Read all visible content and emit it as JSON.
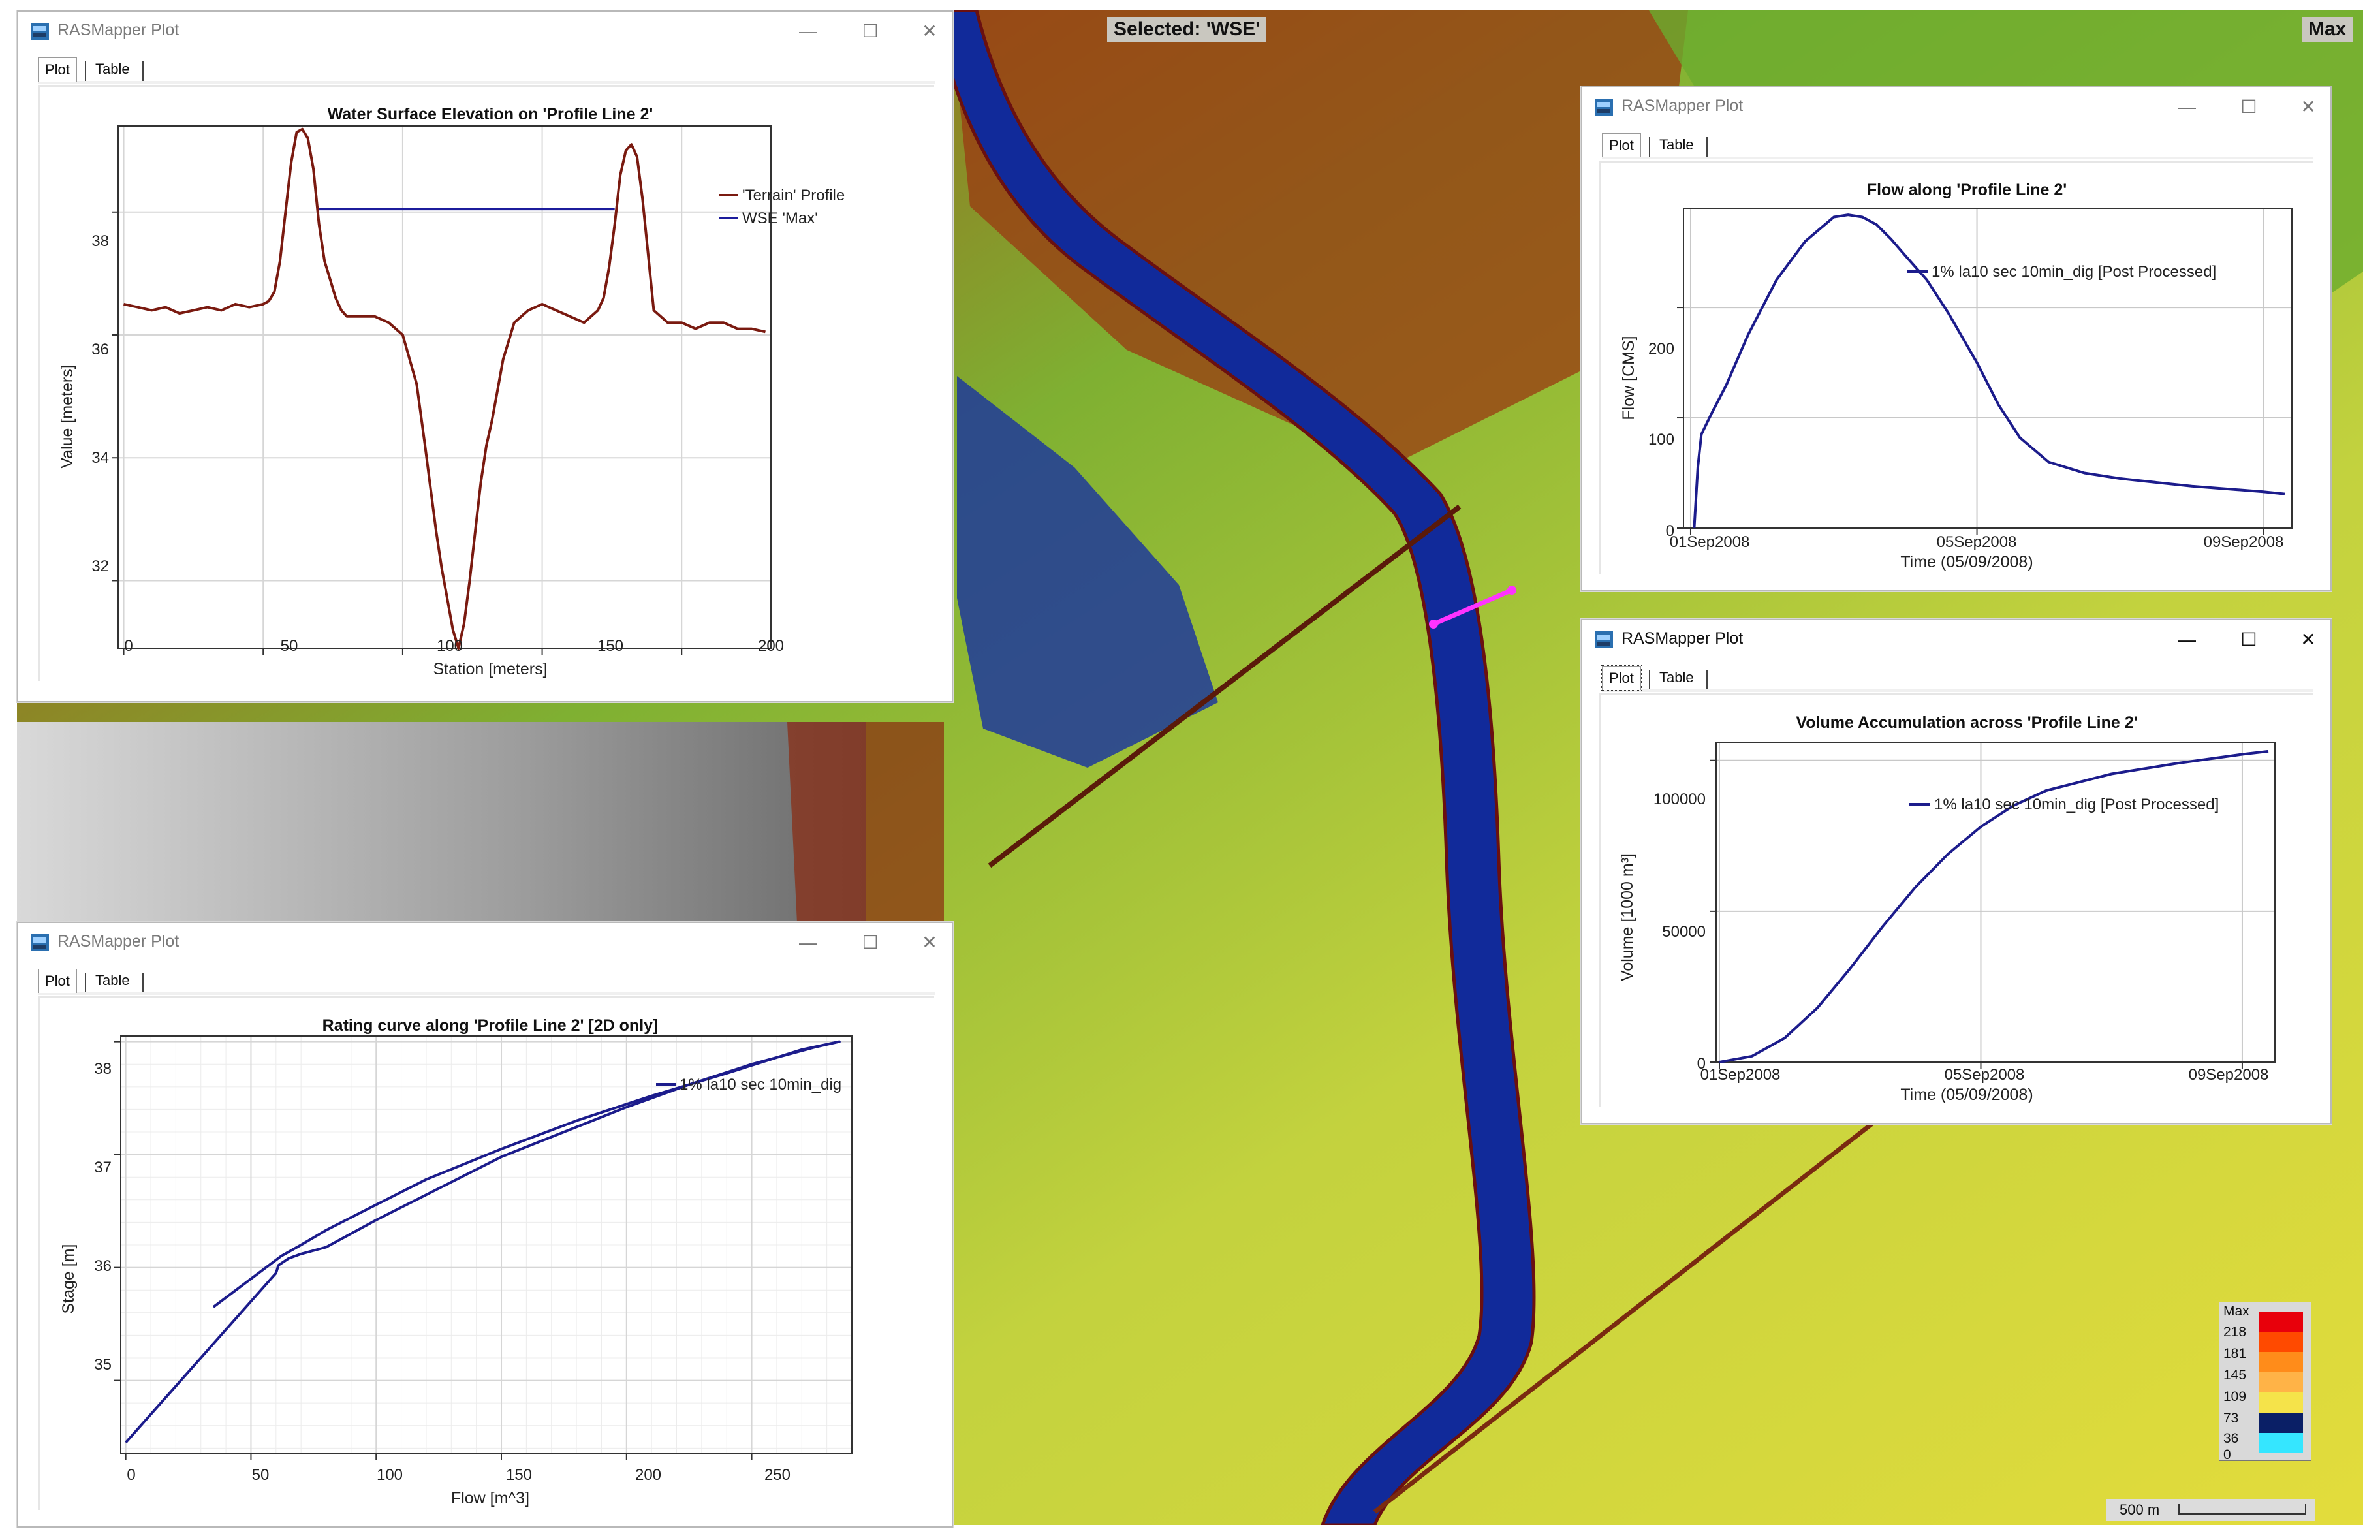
{
  "map": {
    "selected_label": "Selected: 'WSE'",
    "max_label": "Max",
    "legend": {
      "labels": [
        "Max",
        "218",
        "181",
        "145",
        "109",
        "73",
        "36",
        "0"
      ],
      "colors": [
        "#e8000b",
        "#ff4a00",
        "#ff8c1a",
        "#ffb347",
        "#f5e34a",
        "#0a1f66",
        "#35e6ff"
      ]
    },
    "scalebar_label": "500 m"
  },
  "windows": {
    "w1": {
      "title": "RASMapper Plot",
      "tabs": [
        "Plot",
        "Table"
      ],
      "chart_title": "Water Surface Elevation on 'Profile Line 2'",
      "ticks_x": [
        "0",
        "50",
        "100",
        "150",
        "200"
      ],
      "ticks_y": [
        "32",
        "34",
        "36",
        "38"
      ],
      "xlabel": "Station [meters]",
      "ylabel": "Value [meters]",
      "legend": [
        "'Terrain' Profile",
        "WSE 'Max'"
      ]
    },
    "w2": {
      "title": "RASMapper Plot",
      "tabs": [
        "Plot",
        "Table"
      ],
      "chart_title": "Flow along 'Profile Line 2'",
      "ticks_x": [
        "01Sep2008",
        "05Sep2008",
        "09Sep2008"
      ],
      "ticks_y": [
        "0",
        "100",
        "200"
      ],
      "xlabel": "Time (05/09/2008)",
      "ylabel": "Flow [CMS]",
      "legend": [
        "1% la10 sec 10min_dig [Post Processed]"
      ]
    },
    "w3": {
      "title": "RASMapper Plot",
      "tabs": [
        "Plot",
        "Table"
      ],
      "chart_title": "Volume Accumulation across 'Profile Line 2'",
      "ticks_x": [
        "01Sep2008",
        "05Sep2008",
        "09Sep2008"
      ],
      "ticks_y": [
        "0",
        "50000",
        "100000"
      ],
      "xlabel": "Time (05/09/2008)",
      "ylabel": "Volume [1000 m³]",
      "legend": [
        "1% la10 sec 10min_dig [Post Processed]"
      ]
    },
    "w4": {
      "title": "RASMapper Plot",
      "tabs": [
        "Plot",
        "Table"
      ],
      "chart_title": "Rating curve along 'Profile Line 2' [2D only]",
      "ticks_x": [
        "0",
        "50",
        "100",
        "150",
        "200",
        "250"
      ],
      "ticks_y": [
        "35",
        "36",
        "37",
        "38"
      ],
      "xlabel": "Flow [m^3]",
      "ylabel": "Stage [m]",
      "legend": [
        "1% la10 sec 10min_dig"
      ]
    }
  },
  "chart_data": [
    {
      "type": "line",
      "title": "Water Surface Elevation on 'Profile Line 2'",
      "xlabel": "Station [meters]",
      "ylabel": "Value [meters]",
      "xlim": [
        -2,
        232
      ],
      "ylim": [
        30.9,
        39.4
      ],
      "series": [
        {
          "name": "'Terrain' Profile",
          "color": "#7a1a10",
          "x": [
            0,
            5,
            10,
            15,
            20,
            25,
            30,
            35,
            40,
            45,
            50,
            52,
            54,
            56,
            58,
            60,
            62,
            64,
            66,
            68,
            70,
            72,
            74,
            76,
            78,
            80,
            85,
            90,
            95,
            100,
            105,
            108,
            110,
            112,
            114,
            116,
            118,
            120,
            122,
            124,
            126,
            128,
            130,
            132,
            134,
            136,
            140,
            145,
            150,
            155,
            160,
            165,
            170,
            172,
            174,
            176,
            178,
            180,
            182,
            184,
            186,
            188,
            190,
            195,
            200,
            205,
            210,
            215,
            220,
            225,
            230
          ],
          "y": [
            36.5,
            36.45,
            36.4,
            36.45,
            36.35,
            36.4,
            36.45,
            36.4,
            36.5,
            36.45,
            36.5,
            36.55,
            36.7,
            37.2,
            38.0,
            38.8,
            39.3,
            39.35,
            39.2,
            38.7,
            37.8,
            37.2,
            36.9,
            36.6,
            36.4,
            36.3,
            36.3,
            36.3,
            36.2,
            36.0,
            35.2,
            34.2,
            33.5,
            32.8,
            32.2,
            31.7,
            31.2,
            30.9,
            31.3,
            32.0,
            32.8,
            33.6,
            34.2,
            34.6,
            35.1,
            35.6,
            36.2,
            36.4,
            36.5,
            36.4,
            36.3,
            36.2,
            36.4,
            36.6,
            37.1,
            37.8,
            38.6,
            39.0,
            39.1,
            38.9,
            38.2,
            37.3,
            36.4,
            36.2,
            36.2,
            36.1,
            36.2,
            36.2,
            36.1,
            36.1,
            36.05
          ]
        },
        {
          "name": "WSE 'Max'",
          "color": "#1c1c9c",
          "x": [
            70,
            176
          ],
          "y": [
            38.05,
            38.05
          ]
        }
      ]
    },
    {
      "type": "line",
      "title": "Flow along 'Profile Line 2'",
      "xlabel": "Time (05/09/2008)",
      "ylabel": "Flow [CMS]",
      "x_unit": "days since 01Sep2008",
      "xlim": [
        -0.1,
        8.4
      ],
      "ylim": [
        0,
        290
      ],
      "series": [
        {
          "name": "1% la10 sec 10min_dig [Post Processed]",
          "color": "#1c1c8c",
          "x": [
            0.05,
            0.1,
            0.15,
            0.3,
            0.5,
            0.8,
            1.2,
            1.6,
            2.0,
            2.2,
            2.4,
            2.6,
            2.8,
            3.0,
            3.3,
            3.6,
            4.0,
            4.3,
            4.6,
            5.0,
            5.5,
            6.0,
            7.0,
            8.0,
            8.3
          ],
          "y": [
            0,
            55,
            85,
            105,
            130,
            175,
            225,
            260,
            282,
            284,
            282,
            275,
            262,
            247,
            225,
            195,
            150,
            112,
            82,
            60,
            50,
            45,
            38,
            33,
            31
          ]
        }
      ]
    },
    {
      "type": "line",
      "title": "Volume Accumulation across 'Profile Line 2'",
      "xlabel": "Time (05/09/2008)",
      "ylabel": "Volume [1000 m³]",
      "x_unit": "days since 01Sep2008",
      "xlim": [
        -0.05,
        8.5
      ],
      "ylim": [
        0,
        106000
      ],
      "series": [
        {
          "name": "1% la10 sec 10min_dig [Post Processed]",
          "color": "#1c1c8c",
          "x": [
            0,
            0.5,
            1,
            1.5,
            2,
            2.5,
            3,
            3.5,
            4,
            4.5,
            5,
            6,
            7,
            8,
            8.4
          ],
          "y": [
            0,
            2000,
            8000,
            18000,
            31000,
            45000,
            58000,
            69000,
            78000,
            85000,
            90000,
            95500,
            99000,
            102000,
            103000
          ]
        }
      ]
    },
    {
      "type": "line",
      "title": "Rating curve along 'Profile Line 2' [2D only]",
      "xlabel": "Flow [m^3]",
      "ylabel": "Stage [m]",
      "xlim": [
        -2,
        290
      ],
      "ylim": [
        34.35,
        38.05
      ],
      "series": [
        {
          "name": "1% la10 sec 10min_dig",
          "color": "#1c1c8c",
          "x": [
            0,
            20,
            40,
            60,
            61,
            65,
            70,
            80,
            100,
            125,
            150,
            175,
            200,
            225,
            250,
            275,
            285,
            270,
            240,
            210,
            180,
            150,
            120,
            95,
            80,
            70,
            62,
            50,
            35
          ],
          "y": [
            34.45,
            34.95,
            35.45,
            35.95,
            36.02,
            36.08,
            36.12,
            36.18,
            36.42,
            36.7,
            36.98,
            37.2,
            37.42,
            37.62,
            37.8,
            37.95,
            38.0,
            37.93,
            37.72,
            37.52,
            37.3,
            37.05,
            36.78,
            36.5,
            36.33,
            36.2,
            36.1,
            35.9,
            35.65
          ]
        }
      ]
    }
  ]
}
